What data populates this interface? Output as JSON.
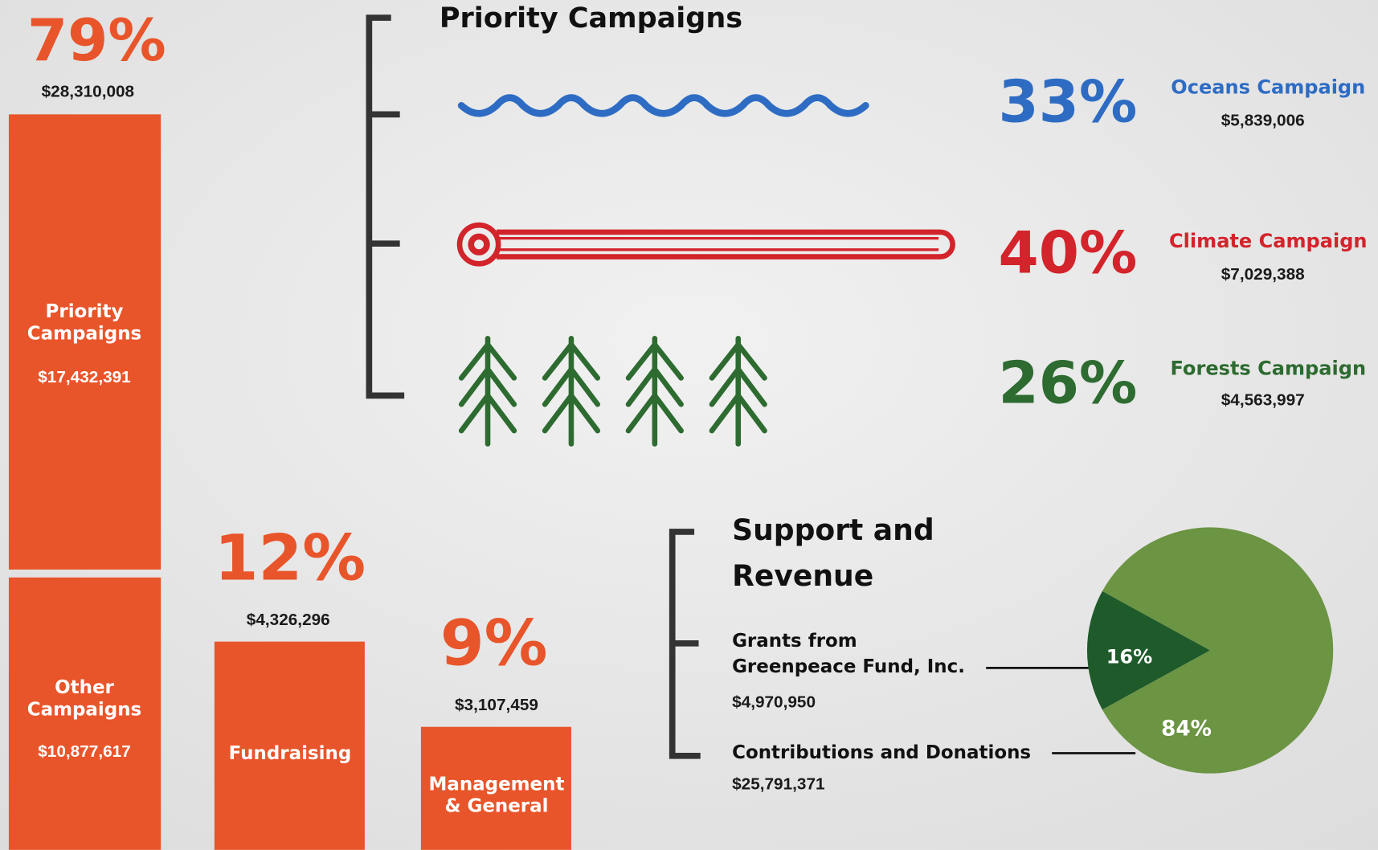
{
  "expenses": {
    "color": "#e8552a",
    "program": {
      "percent": "79%",
      "amount": "$28,310,008",
      "segments": [
        {
          "name": [
            "Priority",
            "Campaigns"
          ],
          "amount": "$17,432,391"
        },
        {
          "name": [
            "Other",
            "Campaigns"
          ],
          "amount": "$10,877,617"
        }
      ]
    },
    "fundraising": {
      "percent": "12%",
      "amount": "$4,326,296",
      "name": "Fundraising"
    },
    "management": {
      "percent": "9%",
      "amount": "$3,107,459",
      "name": [
        "Management",
        "& General"
      ]
    }
  },
  "priority_campaigns": {
    "title": "Priority Campaigns",
    "items": [
      {
        "percent": "33%",
        "name": "Oceans Campaign",
        "amount": "$5,839,006",
        "color": "#2e6cc4"
      },
      {
        "percent": "40%",
        "name": "Climate Campaign",
        "amount": "$7,029,388",
        "color": "#d3232b"
      },
      {
        "percent": "26%",
        "name": "Forests Campaign",
        "amount": "$4,563,997",
        "color": "#2d6b30"
      }
    ]
  },
  "support_revenue": {
    "title": [
      "Support and",
      "Revenue"
    ],
    "items": [
      {
        "name": [
          "Grants from",
          "Greenpeace Fund, Inc."
        ],
        "amount": "$4,970,950",
        "share": {
          "value": 16,
          "label": "16%"
        },
        "color": "#1f5a2b"
      },
      {
        "name": [
          "Contributions and Donations"
        ],
        "amount": "$25,791,371",
        "share": {
          "value": 84,
          "label": "84%"
        },
        "color": "#6b9443"
      }
    ]
  }
}
